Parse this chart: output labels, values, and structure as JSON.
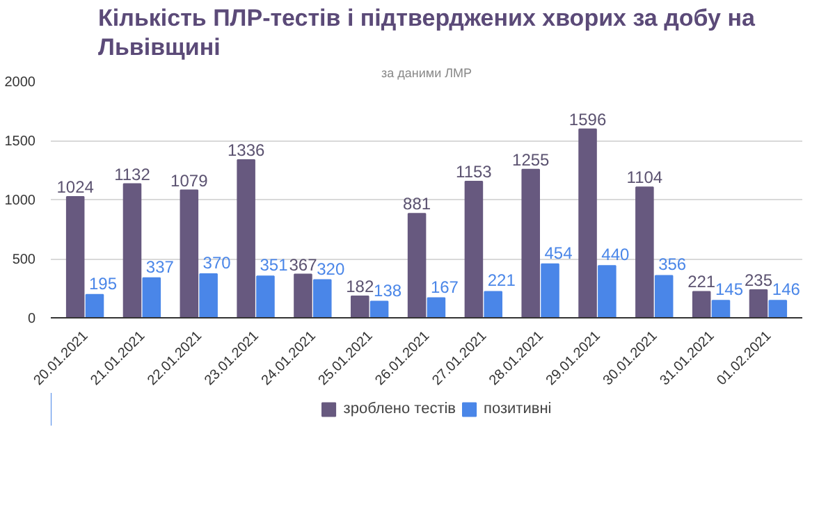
{
  "chart_data": {
    "type": "bar",
    "title": "Кількість ПЛР-тестів і підтверджених хворих за добу на Львівщині",
    "subtitle": "за даними ЛМР",
    "categories": [
      "20.01.2021",
      "21.01.2021",
      "22.01.2021",
      "23.01.2021",
      "24.01.2021",
      "25.01.2021",
      "26.01.2021",
      "27.01.2021",
      "28.01.2021",
      "29.01.2021",
      "30.01.2021",
      "31.01.2021",
      "01.02.2021"
    ],
    "series": [
      {
        "name": "зроблено тестів",
        "color": "#67597f",
        "values": [
          1024,
          1132,
          1079,
          1336,
          367,
          182,
          881,
          1153,
          1255,
          1596,
          1104,
          221,
          235
        ]
      },
      {
        "name": "позитивні",
        "color": "#4a86e8",
        "values": [
          195,
          337,
          370,
          351,
          320,
          138,
          167,
          221,
          454,
          440,
          356,
          145,
          146
        ]
      }
    ],
    "ylim": [
      0,
      2000
    ],
    "yticks": [
      0,
      500,
      1000,
      1500,
      2000
    ],
    "grid": "y",
    "legend": "bottom",
    "data_labels": true
  }
}
